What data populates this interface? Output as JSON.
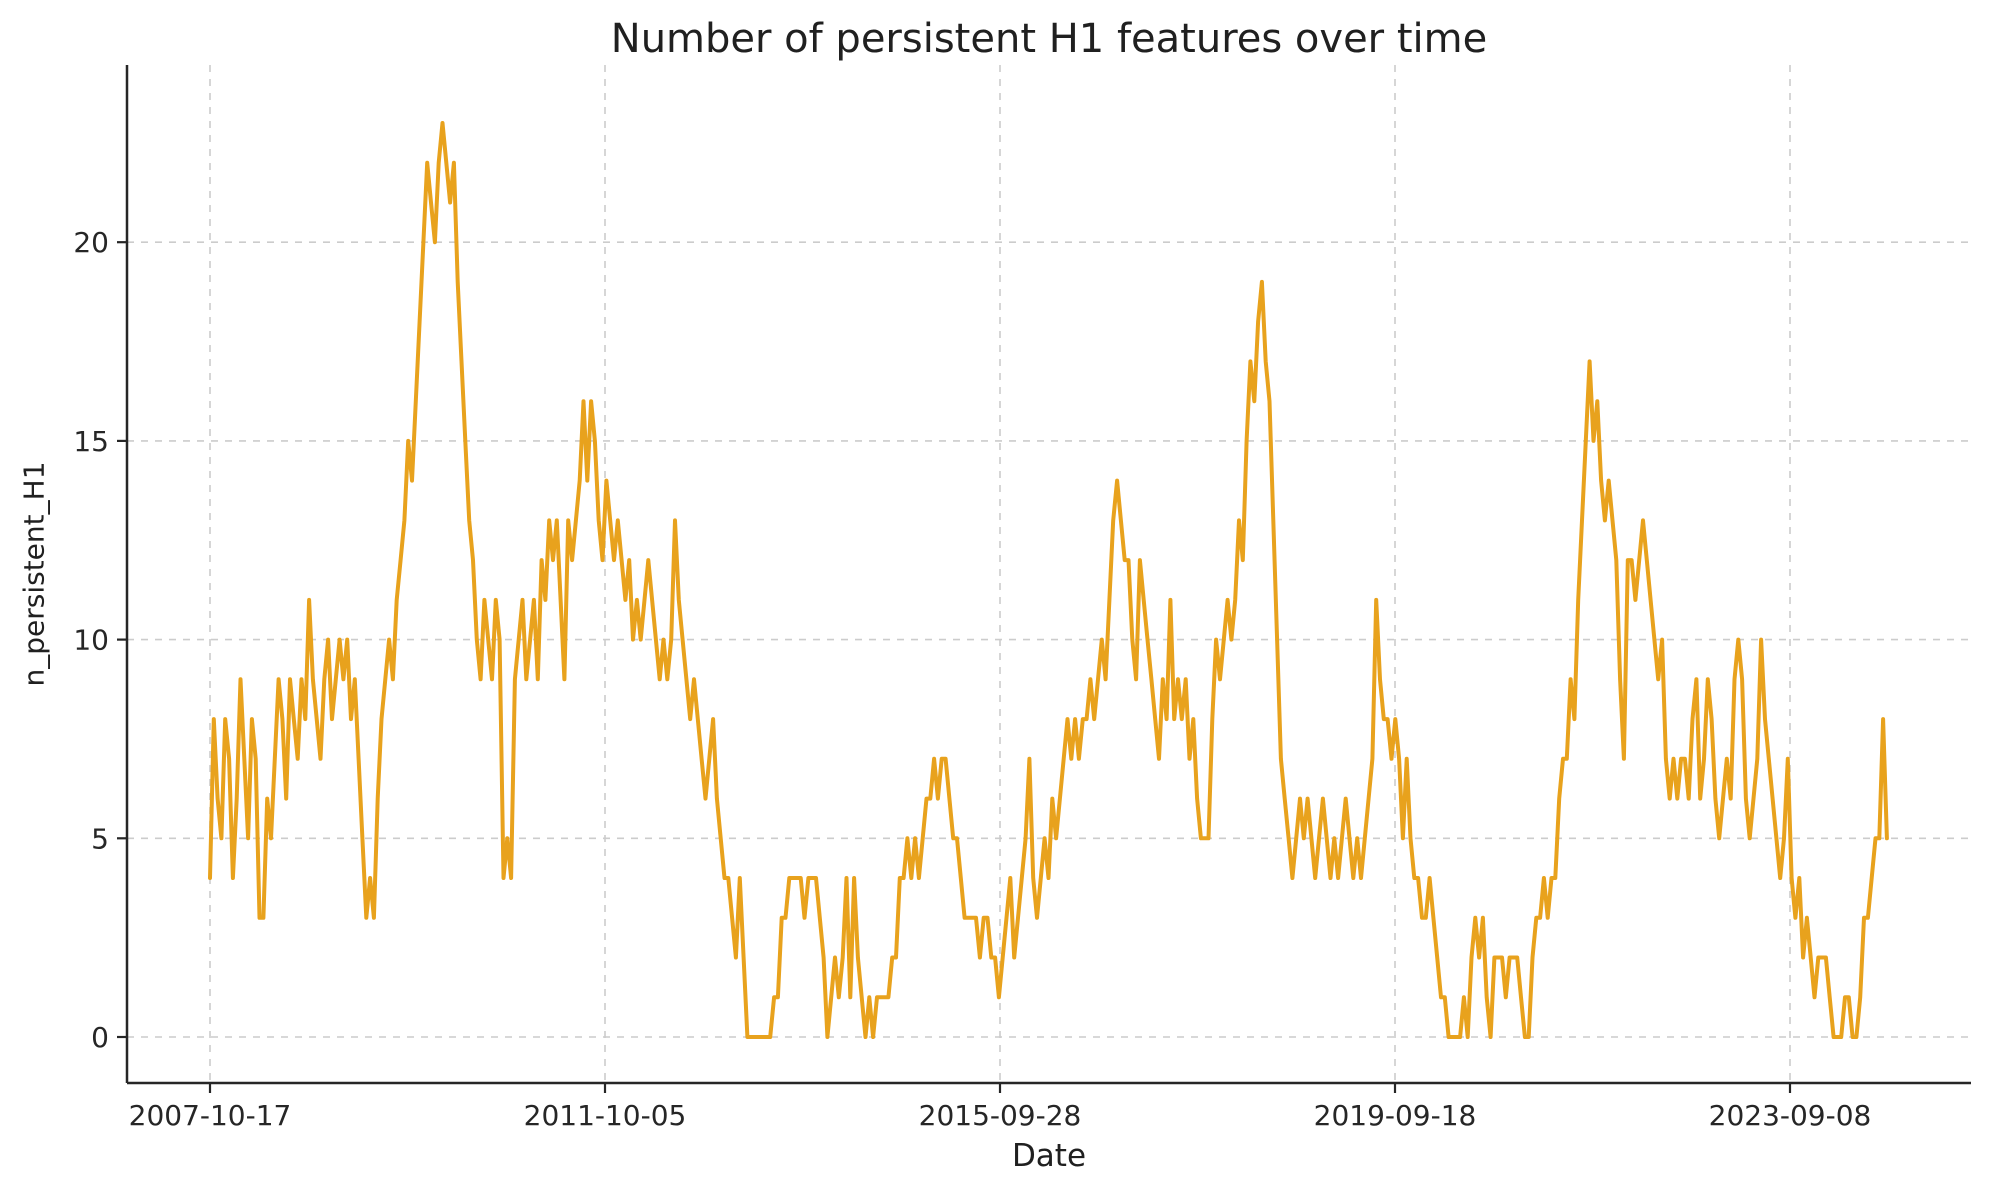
{
  "title": "Number of persistent H1 features over time",
  "axes": {
    "xlabel": "Date",
    "ylabel": "n_persistent_H1"
  },
  "chart_data": {
    "type": "line",
    "title": "Number of persistent H1 features over time",
    "xlabel": "Date",
    "ylabel": "n_persistent_H1",
    "legend": "none",
    "grid": "dashed",
    "line_color": "#E8A21D",
    "grid_color": "#cccccc",
    "axis_color": "#262626",
    "x_tick_labels": [
      "2007-10-17",
      "2011-10-05",
      "2015-09-28",
      "2019-09-18",
      "2023-09-08"
    ],
    "x_tick_interval_days": 1451,
    "y_ticks": [
      0,
      5,
      10,
      15,
      20
    ],
    "ylim": [
      -1.16,
      24.5
    ],
    "series_name": "n_persistent_H1",
    "start_date": "2007-10-17",
    "step_days": 14,
    "y_min_observed": 0,
    "y_max_observed": 23,
    "values": [
      4,
      8,
      6,
      5,
      8,
      7,
      4,
      6,
      9,
      7,
      5,
      8,
      7,
      3,
      3,
      6,
      5,
      7,
      9,
      8,
      6,
      9,
      8,
      7,
      9,
      8,
      11,
      9,
      8,
      7,
      9,
      10,
      8,
      9,
      10,
      9,
      10,
      8,
      9,
      7,
      5,
      3,
      4,
      3,
      6,
      8,
      9,
      10,
      9,
      11,
      12,
      13,
      15,
      14,
      16,
      18,
      20,
      22,
      21,
      20,
      22,
      23,
      22,
      21,
      22,
      19,
      17,
      15,
      13,
      12,
      10,
      9,
      11,
      10,
      9,
      11,
      10,
      4,
      5,
      4,
      9,
      10,
      11,
      9,
      10,
      11,
      9,
      12,
      11,
      13,
      12,
      13,
      11,
      9,
      13,
      12,
      13,
      14,
      16,
      14,
      16,
      15,
      13,
      12,
      14,
      13,
      12,
      13,
      12,
      11,
      12,
      10,
      11,
      10,
      11,
      12,
      11,
      10,
      9,
      10,
      9,
      10,
      13,
      11,
      10,
      9,
      8,
      9,
      8,
      7,
      6,
      7,
      8,
      6,
      5,
      4,
      4,
      3,
      2,
      4,
      2,
      0,
      0,
      0,
      0,
      0,
      0,
      0,
      1,
      1,
      3,
      3,
      4,
      4,
      4,
      4,
      3,
      4,
      4,
      4,
      3,
      2,
      0,
      1,
      2,
      1,
      2,
      4,
      1,
      4,
      2,
      1,
      0,
      1,
      0,
      1,
      1,
      1,
      1,
      2,
      2,
      4,
      4,
      5,
      4,
      5,
      4,
      5,
      6,
      6,
      7,
      6,
      7,
      7,
      6,
      5,
      5,
      4,
      3,
      3,
      3,
      3,
      2,
      3,
      3,
      2,
      2,
      1,
      2,
      3,
      4,
      2,
      3,
      4,
      5,
      7,
      4,
      3,
      4,
      5,
      4,
      6,
      5,
      6,
      7,
      8,
      7,
      8,
      7,
      8,
      8,
      9,
      8,
      9,
      10,
      9,
      11,
      13,
      14,
      13,
      12,
      12,
      10,
      9,
      12,
      11,
      10,
      9,
      8,
      7,
      9,
      8,
      11,
      8,
      9,
      8,
      9,
      7,
      8,
      6,
      5,
      5,
      5,
      8,
      10,
      9,
      10,
      11,
      10,
      11,
      13,
      12,
      15,
      17,
      16,
      18,
      19,
      17,
      16,
      13,
      10,
      7,
      6,
      5,
      4,
      5,
      6,
      5,
      6,
      5,
      4,
      5,
      6,
      5,
      4,
      5,
      4,
      5,
      6,
      5,
      4,
      5,
      4,
      5,
      6,
      7,
      11,
      9,
      8,
      8,
      7,
      8,
      7,
      5,
      7,
      5,
      4,
      4,
      3,
      3,
      4,
      3,
      2,
      1,
      1,
      0,
      0,
      0,
      0,
      1,
      0,
      2,
      3,
      2,
      3,
      1,
      0,
      2,
      2,
      2,
      1,
      2,
      2,
      2,
      1,
      0,
      0,
      2,
      3,
      3,
      4,
      3,
      4,
      4,
      6,
      7,
      7,
      9,
      8,
      11,
      13,
      15,
      17,
      15,
      16,
      14,
      13,
      14,
      13,
      12,
      9,
      7,
      12,
      12,
      11,
      12,
      13,
      12,
      11,
      10,
      9,
      10,
      7,
      6,
      7,
      6,
      7,
      7,
      6,
      8,
      9,
      6,
      7,
      9,
      8,
      6,
      5,
      6,
      7,
      6,
      9,
      10,
      9,
      6,
      5,
      6,
      7,
      10,
      8,
      7,
      6,
      5,
      4,
      5,
      7,
      4,
      3,
      4,
      2,
      3,
      2,
      1,
      2,
      2,
      2,
      1,
      0,
      0,
      0,
      1,
      1,
      0,
      0,
      1,
      3,
      3,
      4,
      5,
      5,
      8,
      5
    ]
  }
}
